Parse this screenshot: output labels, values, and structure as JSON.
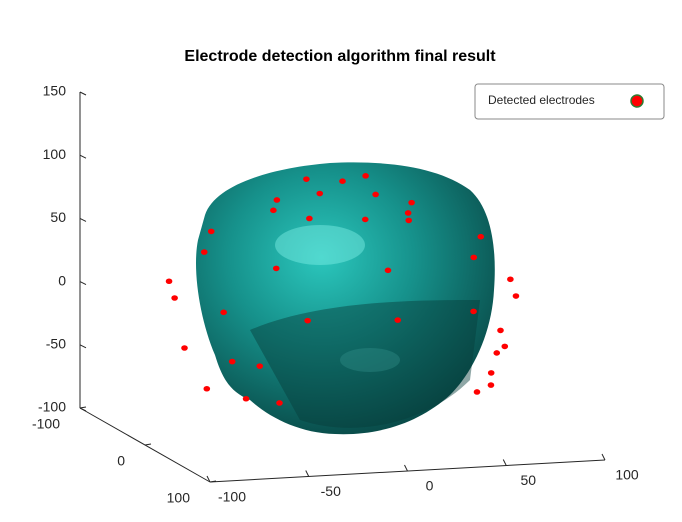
{
  "chart_data": {
    "type": "scatter3d",
    "title": "Electrode detection algorithm final result",
    "xlim": [
      -100,
      100
    ],
    "xticks": [
      -100,
      -50,
      0,
      50,
      100
    ],
    "ylim": [
      -100,
      100
    ],
    "yticks": [
      -100,
      0,
      100
    ],
    "zlim": [
      -100,
      150
    ],
    "zticks": [
      -100,
      -50,
      0,
      50,
      100,
      150
    ],
    "legend": "top-right",
    "series": [
      {
        "name": "Detected electrodes",
        "color": "#ff0000",
        "edge_color": "#2e7d32",
        "x": [
          35,
          25,
          0,
          -25,
          -35,
          -25,
          0,
          25,
          70,
          50,
          0,
          -50,
          -70,
          -50,
          0,
          50,
          85,
          74,
          42,
          0,
          -42,
          -74,
          -85,
          -74,
          -42,
          0,
          42,
          74,
          80,
          69,
          60,
          -80,
          -69,
          -60,
          72,
          62,
          50,
          -72,
          -62,
          -50,
          0,
          15,
          -15
        ],
        "y": [
          0,
          25,
          35,
          25,
          0,
          -25,
          -35,
          -25,
          0,
          50,
          70,
          50,
          0,
          -50,
          -70,
          -50,
          0,
          42,
          74,
          85,
          74,
          42,
          0,
          -42,
          -74,
          -85,
          -74,
          -42,
          0,
          40,
          55,
          0,
          40,
          55,
          10,
          40,
          55,
          10,
          40,
          55,
          0,
          -10,
          -10
        ],
        "z": [
          80,
          80,
          80,
          80,
          80,
          80,
          80,
          80,
          50,
          50,
          50,
          50,
          50,
          50,
          50,
          50,
          15,
          15,
          15,
          15,
          15,
          15,
          15,
          15,
          15,
          15,
          15,
          15,
          -25,
          -25,
          -25,
          -25,
          -25,
          -25,
          -55,
          -55,
          -55,
          -55,
          -55,
          -55,
          100,
          100,
          100
        ]
      }
    ]
  }
}
